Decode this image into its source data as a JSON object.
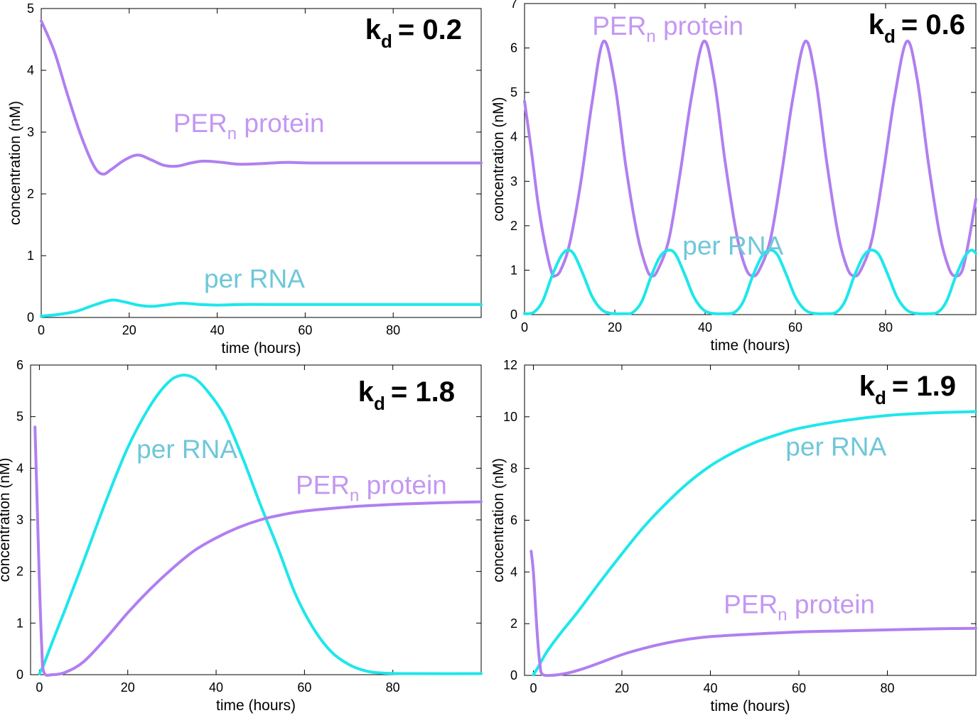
{
  "colors": {
    "protein": "#b07ff0",
    "rna": "#1de7eb",
    "axis": "#000000",
    "label_rna": "#6fc7d8",
    "label_protein": "#c497f2"
  },
  "chart_data": [
    {
      "type": "line",
      "panel": "top-left",
      "kd_symbol": "k",
      "kd_subscript": "d",
      "kd_value": "= 0.2",
      "xlabel": "time (hours)",
      "ylabel": "concentration (nM)",
      "xlim": [
        0,
        100
      ],
      "ylim": [
        0,
        5
      ],
      "xticks": [
        0,
        20,
        40,
        60,
        80
      ],
      "yticks": [
        0,
        1,
        2,
        3,
        4,
        5
      ],
      "series": [
        {
          "name": "PER_n protein",
          "label": "PER",
          "label_sub": "n",
          "label_rest": " protein",
          "label_pos": [
            30,
            3.0
          ],
          "color": "protein",
          "points": [
            [
              0,
              4.8
            ],
            [
              3,
              4.3
            ],
            [
              6,
              3.6
            ],
            [
              9,
              2.95
            ],
            [
              12,
              2.45
            ],
            [
              14,
              2.32
            ],
            [
              16,
              2.4
            ],
            [
              19,
              2.55
            ],
            [
              22,
              2.63
            ],
            [
              25,
              2.55
            ],
            [
              28,
              2.46
            ],
            [
              31,
              2.45
            ],
            [
              34,
              2.5
            ],
            [
              37,
              2.53
            ],
            [
              41,
              2.51
            ],
            [
              45,
              2.48
            ],
            [
              50,
              2.49
            ],
            [
              56,
              2.51
            ],
            [
              64,
              2.5
            ],
            [
              100,
              2.5
            ]
          ]
        },
        {
          "name": "per RNA",
          "label": "per RNA",
          "label_pos": [
            37,
            0.48
          ],
          "color": "rna",
          "points": [
            [
              0,
              0.02
            ],
            [
              4,
              0.05
            ],
            [
              8,
              0.1
            ],
            [
              12,
              0.2
            ],
            [
              16,
              0.28
            ],
            [
              19,
              0.25
            ],
            [
              22,
              0.2
            ],
            [
              25,
              0.18
            ],
            [
              28,
              0.2
            ],
            [
              32,
              0.23
            ],
            [
              36,
              0.21
            ],
            [
              40,
              0.2
            ],
            [
              46,
              0.21
            ],
            [
              55,
              0.21
            ],
            [
              100,
              0.21
            ]
          ]
        }
      ]
    },
    {
      "type": "line",
      "panel": "top-right",
      "kd_symbol": "k",
      "kd_subscript": "d",
      "kd_value": "= 0.6",
      "xlabel": "time (hours)",
      "ylabel": "concentration (nM)",
      "xlim": [
        0,
        100
      ],
      "ylim": [
        0,
        7
      ],
      "xticks": [
        0,
        20,
        40,
        60,
        80
      ],
      "yticks": [
        0,
        1,
        2,
        3,
        4,
        5,
        6,
        7
      ],
      "period": 22.4,
      "series": [
        {
          "name": "PER_n protein",
          "label": "PER",
          "label_sub": "n",
          "label_rest": " protein",
          "label_pos": [
            15,
            6.3
          ],
          "color": "protein",
          "points": [
            [
              0,
              4.8
            ],
            [
              1.5,
              3.7
            ],
            [
              3,
              2.5
            ],
            [
              4.5,
              1.6
            ],
            [
              6,
              0.95
            ],
            [
              6.7,
              0.87
            ],
            [
              8,
              1.0
            ],
            [
              10,
              1.6
            ],
            [
              12.5,
              3.0
            ],
            [
              15,
              4.8
            ],
            [
              17.5,
              6.15
            ],
            [
              20,
              5.2
            ],
            [
              22.5,
              3.3
            ],
            [
              25,
              1.8
            ],
            [
              27,
              1.05
            ],
            [
              28.2,
              0.87
            ],
            [
              29.5,
              1.0
            ],
            [
              32,
              1.7
            ],
            [
              34.5,
              3.2
            ],
            [
              37,
              4.9
            ],
            [
              39.7,
              6.15
            ],
            [
              42,
              5.3
            ],
            [
              44.5,
              3.4
            ],
            [
              47,
              1.8
            ],
            [
              49,
              1.05
            ],
            [
              50.5,
              0.87
            ],
            [
              52,
              1.0
            ],
            [
              54.5,
              1.7
            ],
            [
              57,
              3.2
            ],
            [
              59.5,
              4.9
            ],
            [
              62.2,
              6.15
            ],
            [
              64.5,
              5.3
            ],
            [
              67,
              3.4
            ],
            [
              69.5,
              1.8
            ],
            [
              71.5,
              1.05
            ],
            [
              73,
              0.87
            ],
            [
              74.5,
              1.0
            ],
            [
              77,
              1.7
            ],
            [
              79.5,
              3.2
            ],
            [
              82,
              4.9
            ],
            [
              84.7,
              6.15
            ],
            [
              87,
              5.3
            ],
            [
              89.5,
              3.4
            ],
            [
              92,
              1.8
            ],
            [
              94,
              1.05
            ],
            [
              95.4,
              0.87
            ],
            [
              97,
              1.0
            ],
            [
              98.5,
              1.7
            ],
            [
              100,
              2.6
            ]
          ]
        },
        {
          "name": "per RNA",
          "label": "per RNA",
          "label_pos": [
            35,
            1.35
          ],
          "color": "rna",
          "points": [
            [
              0,
              0.02
            ],
            [
              2,
              0.05
            ],
            [
              4,
              0.3
            ],
            [
              6,
              0.85
            ],
            [
              8,
              1.3
            ],
            [
              9.5,
              1.45
            ],
            [
              11,
              1.35
            ],
            [
              13,
              0.9
            ],
            [
              15,
              0.4
            ],
            [
              17,
              0.12
            ],
            [
              19,
              0.03
            ],
            [
              22,
              0.02
            ],
            [
              24,
              0.05
            ],
            [
              26,
              0.3
            ],
            [
              28,
              0.85
            ],
            [
              30,
              1.3
            ],
            [
              31.9,
              1.45
            ],
            [
              33.5,
              1.35
            ],
            [
              35.5,
              0.9
            ],
            [
              37.5,
              0.4
            ],
            [
              39.5,
              0.12
            ],
            [
              41.5,
              0.03
            ],
            [
              44,
              0.02
            ],
            [
              46.5,
              0.05
            ],
            [
              48.5,
              0.3
            ],
            [
              50.5,
              0.85
            ],
            [
              52.5,
              1.3
            ],
            [
              54.3,
              1.45
            ],
            [
              56,
              1.35
            ],
            [
              58,
              0.9
            ],
            [
              60,
              0.4
            ],
            [
              62,
              0.12
            ],
            [
              64,
              0.03
            ],
            [
              66.5,
              0.02
            ],
            [
              69,
              0.05
            ],
            [
              71,
              0.3
            ],
            [
              73,
              0.85
            ],
            [
              75,
              1.3
            ],
            [
              76.7,
              1.45
            ],
            [
              78.5,
              1.35
            ],
            [
              80.5,
              0.9
            ],
            [
              82.5,
              0.4
            ],
            [
              84.5,
              0.12
            ],
            [
              86.5,
              0.03
            ],
            [
              89,
              0.02
            ],
            [
              91.5,
              0.05
            ],
            [
              93.5,
              0.3
            ],
            [
              95.5,
              0.85
            ],
            [
              97.5,
              1.3
            ],
            [
              99,
              1.45
            ],
            [
              100,
              1.38
            ]
          ]
        }
      ]
    },
    {
      "type": "line",
      "panel": "bottom-left",
      "kd_symbol": "k",
      "kd_subscript": "d",
      "kd_value": "= 1.8",
      "xlabel": "time (hours)",
      "ylabel": "concentration (nM)",
      "xlim": [
        -2,
        100
      ],
      "ylim": [
        0,
        6
      ],
      "xticks": [
        0,
        20,
        40,
        60,
        80
      ],
      "yticks": [
        0,
        1,
        2,
        3,
        4,
        5,
        6
      ],
      "series": [
        {
          "name": "per RNA",
          "label": "per RNA",
          "label_pos": [
            22,
            4.2
          ],
          "color": "rna",
          "points": [
            [
              0,
              0.02
            ],
            [
              1,
              0.2
            ],
            [
              3,
              0.65
            ],
            [
              6,
              1.3
            ],
            [
              10,
              2.2
            ],
            [
              15,
              3.35
            ],
            [
              20,
              4.4
            ],
            [
              25,
              5.2
            ],
            [
              29,
              5.65
            ],
            [
              32,
              5.8
            ],
            [
              35,
              5.75
            ],
            [
              38,
              5.5
            ],
            [
              42,
              5.0
            ],
            [
              46,
              4.2
            ],
            [
              50,
              3.3
            ],
            [
              54,
              2.45
            ],
            [
              58,
              1.55
            ],
            [
              62,
              0.9
            ],
            [
              66,
              0.45
            ],
            [
              70,
              0.2
            ],
            [
              74,
              0.07
            ],
            [
              78,
              0.03
            ],
            [
              85,
              0.02
            ],
            [
              100,
              0.02
            ]
          ]
        },
        {
          "name": "PER_n protein",
          "label": "PER",
          "label_sub": "n",
          "label_rest": " protein",
          "label_pos": [
            58,
            3.5
          ],
          "color": "protein",
          "points": [
            [
              -1,
              4.8
            ],
            [
              -0.5,
              3.3
            ],
            [
              0,
              1.8
            ],
            [
              0.5,
              0.6
            ],
            [
              1,
              0.05
            ],
            [
              3,
              0.0
            ],
            [
              6,
              0.05
            ],
            [
              10,
              0.25
            ],
            [
              15,
              0.7
            ],
            [
              20,
              1.2
            ],
            [
              25,
              1.65
            ],
            [
              30,
              2.05
            ],
            [
              35,
              2.4
            ],
            [
              40,
              2.65
            ],
            [
              45,
              2.85
            ],
            [
              50,
              3.0
            ],
            [
              55,
              3.1
            ],
            [
              60,
              3.17
            ],
            [
              70,
              3.25
            ],
            [
              80,
              3.3
            ],
            [
              90,
              3.33
            ],
            [
              100,
              3.35
            ]
          ]
        }
      ]
    },
    {
      "type": "line",
      "panel": "bottom-right",
      "kd_symbol": "k",
      "kd_subscript": "d",
      "kd_value": "= 1.9",
      "xlabel": "time (hours)",
      "ylabel": "concentration (nM)",
      "xlim": [
        -2,
        100
      ],
      "ylim": [
        0,
        12
      ],
      "xticks": [
        0,
        20,
        40,
        60,
        80
      ],
      "yticks": [
        0,
        2,
        4,
        6,
        8,
        10,
        12
      ],
      "series": [
        {
          "name": "per RNA",
          "label": "per RNA",
          "label_pos": [
            57,
            8.5
          ],
          "color": "rna",
          "points": [
            [
              0,
              0.02
            ],
            [
              1,
              0.3
            ],
            [
              3,
              0.9
            ],
            [
              6,
              1.6
            ],
            [
              10,
              2.45
            ],
            [
              15,
              3.6
            ],
            [
              20,
              4.7
            ],
            [
              25,
              5.75
            ],
            [
              30,
              6.65
            ],
            [
              35,
              7.45
            ],
            [
              40,
              8.1
            ],
            [
              45,
              8.6
            ],
            [
              50,
              9.0
            ],
            [
              55,
              9.3
            ],
            [
              60,
              9.55
            ],
            [
              70,
              9.85
            ],
            [
              80,
              10.05
            ],
            [
              90,
              10.15
            ],
            [
              100,
              10.2
            ]
          ]
        },
        {
          "name": "PER_n protein",
          "label": "PER",
          "label_sub": "n",
          "label_rest": " protein",
          "label_pos": [
            43,
            2.4
          ],
          "color": "protein",
          "points": [
            [
              -0.5,
              4.8
            ],
            [
              0,
              4.0
            ],
            [
              0.5,
              2.6
            ],
            [
              1,
              1.3
            ],
            [
              1.5,
              0.4
            ],
            [
              2,
              0.05
            ],
            [
              4,
              0.0
            ],
            [
              8,
              0.1
            ],
            [
              12,
              0.3
            ],
            [
              16,
              0.55
            ],
            [
              20,
              0.8
            ],
            [
              25,
              1.05
            ],
            [
              30,
              1.25
            ],
            [
              35,
              1.4
            ],
            [
              40,
              1.5
            ],
            [
              50,
              1.6
            ],
            [
              60,
              1.68
            ],
            [
              70,
              1.72
            ],
            [
              80,
              1.76
            ],
            [
              90,
              1.8
            ],
            [
              100,
              1.82
            ]
          ]
        }
      ]
    }
  ]
}
